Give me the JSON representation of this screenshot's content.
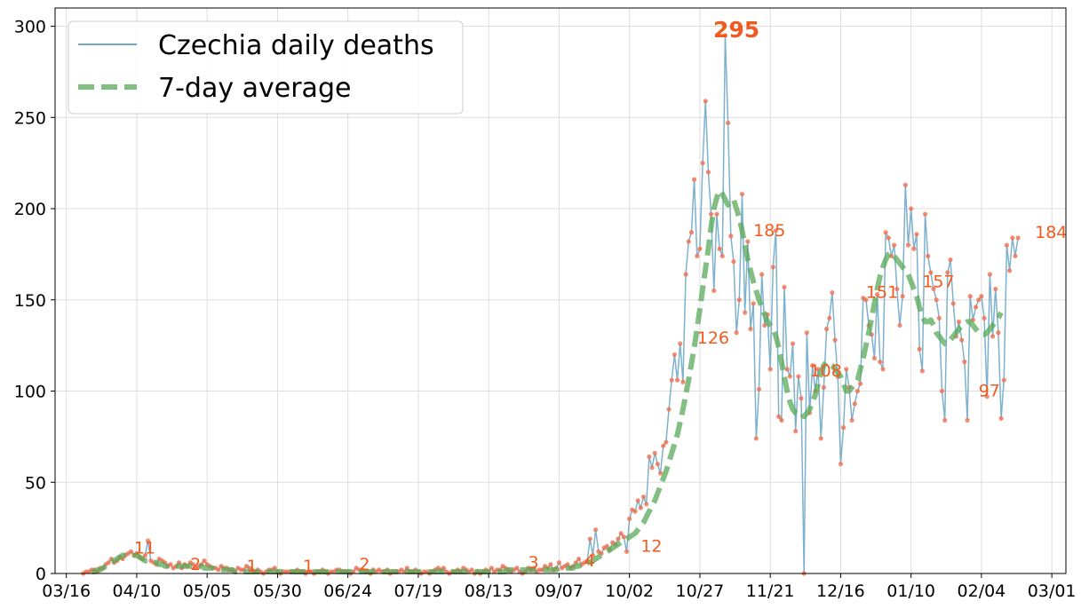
{
  "chart_data": {
    "type": "line",
    "title": "",
    "xlabel": "",
    "ylabel": "",
    "ylim": [
      0,
      310
    ],
    "yticks": [
      0,
      50,
      100,
      150,
      200,
      250,
      300
    ],
    "grid": true,
    "legend_position": "top-left",
    "x_start_date": "2020-03-12",
    "x_end_date": "2021-03-06",
    "xticks": [
      {
        "date": "2020-03-16",
        "label": "03/16"
      },
      {
        "date": "2020-04-10",
        "label": "04/10"
      },
      {
        "date": "2020-05-05",
        "label": "05/05"
      },
      {
        "date": "2020-05-30",
        "label": "05/30"
      },
      {
        "date": "2020-06-24",
        "label": "06/24"
      },
      {
        "date": "2020-07-19",
        "label": "07/19"
      },
      {
        "date": "2020-08-13",
        "label": "08/13"
      },
      {
        "date": "2020-09-07",
        "label": "09/07"
      },
      {
        "date": "2020-10-02",
        "label": "10/02"
      },
      {
        "date": "2020-10-27",
        "label": "10/27"
      },
      {
        "date": "2020-11-21",
        "label": "11/21"
      },
      {
        "date": "2020-12-16",
        "label": "12/16"
      },
      {
        "date": "2021-01-10",
        "label": "01/10"
      },
      {
        "date": "2021-02-04",
        "label": "02/04"
      },
      {
        "date": "2021-03-01",
        "label": "03/01"
      }
    ],
    "series": [
      {
        "name": "Czechia daily deaths",
        "color": "#6fa8c8",
        "marker_color": "#f07050",
        "start_date": "2020-03-22",
        "values": [
          0,
          1,
          1,
          2,
          2,
          1,
          3,
          3,
          5,
          6,
          8,
          6,
          7,
          9,
          8,
          10,
          11,
          12,
          10,
          11,
          9,
          8,
          10,
          18,
          7,
          6,
          5,
          8,
          7,
          6,
          4,
          5,
          3,
          4,
          6,
          3,
          5,
          4,
          6,
          5,
          3,
          4,
          5,
          7,
          5,
          4,
          3,
          3,
          2,
          4,
          3,
          3,
          2,
          2,
          1,
          3,
          2,
          2,
          4,
          3,
          2,
          1,
          2,
          1,
          0,
          1,
          2,
          2,
          3,
          1,
          0,
          1,
          1,
          1,
          1,
          1,
          2,
          1,
          1,
          0,
          1,
          1,
          0,
          1,
          1,
          2,
          1,
          0,
          1,
          1,
          2,
          2,
          1,
          1,
          1,
          0,
          1,
          3,
          2,
          2,
          1,
          1,
          0,
          2,
          1,
          2,
          1,
          1,
          2,
          0,
          1,
          1,
          1,
          2,
          1,
          3,
          1,
          1,
          2,
          1,
          0,
          1,
          1,
          0,
          1,
          2,
          3,
          2,
          3,
          1,
          0,
          1,
          1,
          2,
          1,
          3,
          2,
          1,
          2,
          0,
          1,
          0,
          1,
          2,
          1,
          3,
          1,
          2,
          2,
          4,
          3,
          2,
          1,
          2,
          3,
          1,
          0,
          1,
          3,
          2,
          3,
          1,
          2,
          2,
          4,
          3,
          5,
          2,
          3,
          6,
          3,
          4,
          5,
          3,
          4,
          6,
          8,
          5,
          6,
          7,
          19,
          10,
          24,
          12,
          11,
          14,
          15,
          13,
          17,
          16,
          19,
          22,
          20,
          12,
          30,
          35,
          34,
          40,
          36,
          42,
          38,
          64,
          58,
          66,
          60,
          55,
          70,
          72,
          90,
          106,
          120,
          106,
          126,
          105,
          164,
          182,
          187,
          216,
          174,
          178,
          225,
          259,
          220,
          197,
          155,
          197,
          178,
          174,
          295,
          247,
          185,
          171,
          132,
          150,
          208,
          143,
          182,
          134,
          148,
          74,
          101,
          164,
          136,
          142,
          112,
          168,
          188,
          86,
          84,
          157,
          112,
          108,
          126,
          78,
          108,
          96,
          0,
          132,
          88,
          114,
          100,
          112,
          74,
          102,
          134,
          140,
          154,
          128,
          108,
          60,
          80,
          112,
          102,
          84,
          93,
          100,
          104,
          151,
          150,
          136,
          131,
          118,
          153,
          116,
          112,
          187,
          184,
          174,
          180,
          156,
          136,
          152,
          213,
          180,
          200,
          178,
          186,
          123,
          111,
          197,
          174,
          165,
          156,
          150,
          140,
          100,
          84,
          165,
          172,
          148,
          130,
          138,
          128,
          116,
          84,
          152,
          139,
          146,
          150,
          152,
          140,
          97,
          164,
          130,
          156,
          132,
          85,
          106,
          180,
          166,
          184,
          174,
          184
        ]
      },
      {
        "name": "7-day average",
        "color": "#5aaa5a",
        "start_date": "2020-03-25",
        "values": [
          1,
          1,
          2,
          2,
          3,
          4,
          5,
          6,
          7,
          8,
          9,
          10,
          10,
          10,
          10,
          10,
          10,
          9,
          8,
          7,
          7,
          7,
          6,
          6,
          5,
          5,
          4,
          4,
          4,
          4,
          4,
          4,
          4,
          4,
          4,
          4,
          4,
          4,
          4,
          4,
          3,
          3,
          3,
          3,
          2,
          2,
          2,
          2,
          2,
          2,
          2,
          1,
          1,
          1,
          1,
          1,
          1,
          1,
          1,
          1,
          1,
          1,
          1,
          1,
          1,
          1,
          1,
          1,
          1,
          1,
          1,
          1,
          1,
          1,
          1,
          1,
          1,
          1,
          1,
          1,
          1,
          1,
          1,
          1,
          1,
          1,
          1,
          1,
          1,
          1,
          1,
          1,
          1,
          1,
          1,
          1,
          1,
          1,
          1,
          1,
          1,
          1,
          1,
          1,
          1,
          1,
          1,
          1,
          1,
          1,
          1,
          1,
          1,
          1,
          1,
          1,
          1,
          1,
          1,
          1,
          1,
          1,
          1,
          1,
          1,
          1,
          1,
          1,
          1,
          1,
          1,
          1,
          1,
          1,
          1,
          1,
          1,
          1,
          1,
          1,
          1,
          1,
          1,
          1,
          1,
          1,
          1,
          1,
          2,
          2,
          2,
          2,
          2,
          2,
          2,
          2,
          2,
          2,
          2,
          2,
          2,
          2,
          2,
          2,
          2,
          2,
          3,
          3,
          3,
          3,
          3,
          3,
          4,
          4,
          5,
          5,
          6,
          6,
          7,
          8,
          9,
          10,
          11,
          12,
          13,
          14,
          15,
          16,
          17,
          18,
          19,
          20,
          21,
          22,
          24,
          26,
          28,
          31,
          34,
          37,
          40,
          44,
          48,
          52,
          56,
          61,
          66,
          71,
          76,
          83,
          90,
          98,
          106,
          115,
          124,
          134,
          145,
          156,
          167,
          178,
          190,
          200,
          206,
          210,
          208,
          205,
          202,
          204,
          205,
          200,
          195,
          188,
          180,
          172,
          166,
          160,
          155,
          150,
          146,
          142,
          138,
          136,
          134,
          130,
          124,
          116,
          108,
          100,
          94,
          90,
          88,
          87,
          88,
          86,
          88,
          90,
          94,
          98,
          104,
          110,
          114,
          116,
          115,
          114,
          112,
          110,
          108,
          104,
          100,
          100,
          102,
          104,
          106,
          112,
          118,
          125,
          132,
          140,
          148,
          156,
          163,
          168,
          172,
          175,
          176,
          174,
          172,
          170,
          168,
          166,
          164,
          160,
          156,
          152,
          146,
          141,
          138,
          138,
          139,
          136,
          132,
          130,
          128,
          126,
          126,
          128,
          130,
          132,
          134,
          136,
          137,
          138,
          138,
          136,
          134,
          132,
          131,
          131,
          132,
          134,
          136,
          138,
          140,
          143
        ]
      }
    ],
    "annotations": [
      {
        "date": "2020-04-09",
        "value": 11,
        "label": "11"
      },
      {
        "date": "2020-04-29",
        "value": 2,
        "label": "2"
      },
      {
        "date": "2020-05-19",
        "value": 1,
        "label": "1"
      },
      {
        "date": "2020-06-08",
        "value": 1,
        "label": "1"
      },
      {
        "date": "2020-06-28",
        "value": 2,
        "label": "2"
      },
      {
        "date": "2020-08-27",
        "value": 3,
        "label": "3"
      },
      {
        "date": "2020-09-16",
        "value": 4,
        "label": "4"
      },
      {
        "date": "2020-10-06",
        "value": 12,
        "label": "12"
      },
      {
        "date": "2020-10-26",
        "value": 126,
        "label": "126"
      },
      {
        "date": "2020-11-15",
        "value": 185,
        "label": "185"
      },
      {
        "date": "2020-12-05",
        "value": 108,
        "label": "108"
      },
      {
        "date": "2020-12-25",
        "value": 151,
        "label": "151"
      },
      {
        "date": "2021-01-14",
        "value": 157,
        "label": "157"
      },
      {
        "date": "2021-02-03",
        "value": 97,
        "label": "97"
      },
      {
        "date": "2021-02-23",
        "value": 184,
        "label": "184"
      }
    ],
    "peak": {
      "date": "2020-11-09",
      "value": 295,
      "label": "295"
    }
  }
}
